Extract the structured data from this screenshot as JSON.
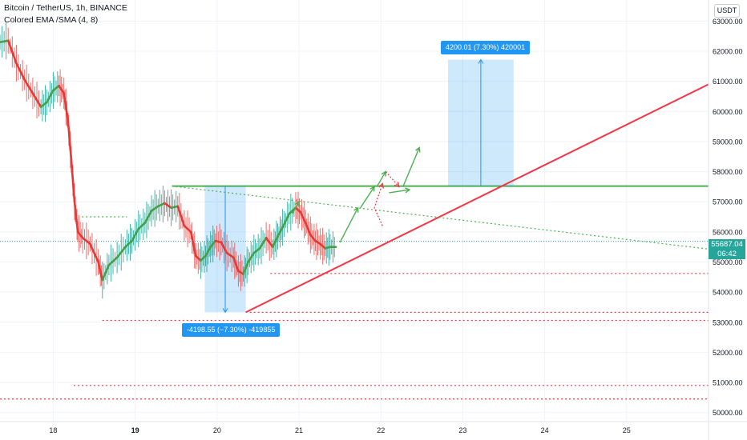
{
  "header": {
    "symbol_line": "Bitcoin / TetherUS, 1h, BINANCE",
    "indicator_line": "Colored EMA /SMA (4, 8)"
  },
  "currency_button": "USDT",
  "current_price": {
    "value": "55687.04",
    "countdown": "06:42",
    "color": "#26a69a"
  },
  "measure_labels": {
    "up": "4200.01 (7.30%) 420001",
    "down": "-4198.55 (−7.30%) -419855"
  },
  "chart_data": {
    "type": "line",
    "x_ticks": [
      "18",
      "19",
      "20",
      "21",
      "22",
      "23",
      "24",
      "25"
    ],
    "x_tick_positions_days": [
      18,
      19,
      20,
      21,
      22,
      23,
      24,
      25
    ],
    "x_range_days": [
      17.35,
      26.0
    ],
    "y_ticks": [
      63000,
      62000,
      61000,
      60000,
      59000,
      58000,
      57000,
      56000,
      55000,
      54000,
      53000,
      52000,
      51000,
      50000
    ],
    "y_range": [
      49700,
      63700
    ],
    "series": [
      {
        "kind": "ema_colored",
        "points": [
          [
            17.35,
            62300
          ],
          [
            17.45,
            62350
          ],
          [
            17.55,
            61600
          ],
          [
            17.65,
            61050
          ],
          [
            17.75,
            60600
          ],
          [
            17.85,
            60150
          ],
          [
            17.92,
            60300
          ],
          [
            18.0,
            60700
          ],
          [
            18.07,
            60850
          ],
          [
            18.13,
            60600
          ],
          [
            18.18,
            59700
          ],
          [
            18.22,
            58400
          ],
          [
            18.26,
            57000
          ],
          [
            18.3,
            56000
          ],
          [
            18.36,
            55800
          ],
          [
            18.45,
            55600
          ],
          [
            18.55,
            55000
          ],
          [
            18.6,
            54400
          ],
          [
            18.68,
            54900
          ],
          [
            18.78,
            55150
          ],
          [
            18.88,
            55500
          ],
          [
            18.96,
            55700
          ],
          [
            19.04,
            56100
          ],
          [
            19.12,
            56300
          ],
          [
            19.2,
            56700
          ],
          [
            19.28,
            56850
          ],
          [
            19.36,
            56950
          ],
          [
            19.44,
            56800
          ],
          [
            19.52,
            56850
          ],
          [
            19.6,
            56200
          ],
          [
            19.68,
            56000
          ],
          [
            19.74,
            55200
          ],
          [
            19.8,
            55050
          ],
          [
            19.86,
            55200
          ],
          [
            19.92,
            55500
          ],
          [
            19.98,
            55700
          ],
          [
            20.05,
            55650
          ],
          [
            20.12,
            55300
          ],
          [
            20.2,
            55150
          ],
          [
            20.26,
            54700
          ],
          [
            20.32,
            54600
          ],
          [
            20.38,
            55000
          ],
          [
            20.45,
            55300
          ],
          [
            20.52,
            55450
          ],
          [
            20.6,
            55800
          ],
          [
            20.68,
            55500
          ],
          [
            20.74,
            55850
          ],
          [
            20.8,
            56150
          ],
          [
            20.88,
            56600
          ],
          [
            20.96,
            56800
          ],
          [
            21.02,
            56650
          ],
          [
            21.08,
            56300
          ],
          [
            21.14,
            55900
          ],
          [
            21.2,
            55700
          ],
          [
            21.26,
            55600
          ],
          [
            21.32,
            55450
          ],
          [
            21.38,
            55500
          ],
          [
            21.45,
            55500
          ]
        ]
      }
    ],
    "horizontal_levels": [
      {
        "y": 57520,
        "x_from": 19.45,
        "x_to": 26.0,
        "style": "solid",
        "color": "#4caf50"
      },
      {
        "y": 56500,
        "x_from": 18.35,
        "x_to": 18.9,
        "style": "dotted",
        "color": "#4caf50"
      },
      {
        "y": 54620,
        "x_from": 20.65,
        "x_to": 26.0,
        "style": "dotted",
        "color": "#f23645"
      },
      {
        "y": 53330,
        "x_from": 20.4,
        "x_to": 26.0,
        "style": "dotted",
        "color": "#f23645"
      },
      {
        "y": 53060,
        "x_from": 18.6,
        "x_to": 26.0,
        "style": "dotted",
        "color": "#f23645"
      },
      {
        "y": 50900,
        "x_from": 18.25,
        "x_to": 26.0,
        "style": "dotted",
        "color": "#f23645"
      },
      {
        "y": 50450,
        "x_from": 17.35,
        "x_to": 26.0,
        "style": "dotted",
        "color": "#f23645"
      }
    ],
    "trendlines": [
      {
        "from": [
          20.35,
          53330
        ],
        "to": [
          26.0,
          60900
        ],
        "style": "solid",
        "color": "#f23645"
      },
      {
        "from": [
          19.45,
          57520
        ],
        "to": [
          26.0,
          55430
        ],
        "style": "dotted",
        "color": "#4caf50"
      }
    ],
    "measure_boxes": [
      {
        "x_from": 22.82,
        "x_to": 23.62,
        "y_from": 57520,
        "y_to": 61720,
        "direction": "up"
      },
      {
        "x_from": 19.85,
        "x_to": 20.35,
        "y_from": 57520,
        "y_to": 53330,
        "direction": "down"
      }
    ],
    "projection_arrows": [
      {
        "path": [
          [
            20.92,
            56600
          ],
          [
            21.0,
            57000
          ]
        ],
        "color": "#4caf50"
      },
      {
        "path": [
          [
            21.5,
            55650
          ],
          [
            21.72,
            56800
          ]
        ],
        "color": "#4caf50"
      },
      {
        "path": [
          [
            21.75,
            56800
          ],
          [
            21.92,
            57500
          ]
        ],
        "color": "#4caf50"
      },
      {
        "path": [
          [
            21.95,
            57500
          ],
          [
            22.06,
            58000
          ]
        ],
        "color": "#4caf50"
      },
      {
        "path": [
          [
            22.27,
            57500
          ],
          [
            22.47,
            58800
          ]
        ],
        "color": "#4caf50"
      },
      {
        "path": [
          [
            22.02,
            56200
          ],
          [
            21.92,
            56800
          ],
          [
            22.02,
            57600
          ]
        ],
        "color": "#f23645"
      },
      {
        "path": [
          [
            22.06,
            58000
          ],
          [
            22.22,
            57500
          ]
        ],
        "color": "#f23645"
      },
      {
        "path": [
          [
            22.1,
            57300
          ],
          [
            22.35,
            57400
          ]
        ],
        "color": "#4caf50"
      }
    ],
    "grid": true,
    "price_line": 55687.04
  }
}
